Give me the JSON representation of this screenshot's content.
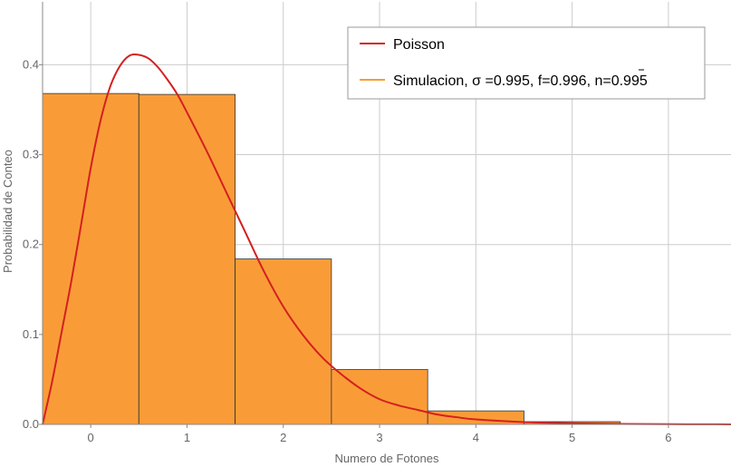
{
  "chart_data": {
    "type": "bar",
    "xlabel": "Numero de Fotones",
    "ylabel": "Probabilidad de Conteo",
    "xlim": [
      -0.5,
      6.65
    ],
    "ylim": [
      0,
      0.47
    ],
    "xticks": [
      0,
      1,
      2,
      3,
      4,
      5,
      6
    ],
    "xtick_labels": [
      "0",
      "1",
      "2",
      "3",
      "4",
      "5",
      "6"
    ],
    "yticks": [
      0,
      0.1,
      0.2,
      0.3,
      0.4
    ],
    "ytick_labels": [
      "0.0",
      "0.1",
      "0.2",
      "0.3",
      "0.4"
    ],
    "grid": true,
    "legend_position": "top-right",
    "series": [
      {
        "name": "Poisson",
        "kind": "line",
        "color": "#d42020",
        "x": [
          -0.5,
          -0.4,
          -0.3,
          -0.2,
          -0.1,
          0.0,
          0.1,
          0.2,
          0.3,
          0.4,
          0.5,
          0.6,
          0.7,
          0.8,
          0.9,
          1.0,
          1.2,
          1.4,
          1.6,
          1.8,
          2.0,
          2.2,
          2.4,
          2.6,
          2.8,
          3.0,
          3.2,
          3.4,
          3.6,
          3.8,
          4.0,
          4.5,
          5.0,
          5.5,
          6.0,
          6.5,
          6.65
        ],
        "y": [
          0.0,
          0.048,
          0.104,
          0.16,
          0.222,
          0.285,
          0.337,
          0.375,
          0.398,
          0.41,
          0.411,
          0.407,
          0.397,
          0.383,
          0.367,
          0.347,
          0.305,
          0.26,
          0.215,
          0.17,
          0.131,
          0.1,
          0.075,
          0.056,
          0.04,
          0.028,
          0.021,
          0.016,
          0.011,
          0.008,
          0.0055,
          0.0025,
          0.0012,
          0.0005,
          0.0002,
          0.0001,
          0.0
        ]
      },
      {
        "name": "Simulacion,  σ =0.995,  f=0.996,  n=0.995",
        "kind": "bar",
        "color": "#f99c38",
        "edge_color": "#333333",
        "categories": [
          0,
          1,
          2,
          3,
          4,
          5,
          6
        ],
        "values": [
          0.368,
          0.367,
          0.184,
          0.061,
          0.015,
          0.003,
          0.0005
        ]
      }
    ]
  },
  "legend": {
    "items": [
      {
        "label": "Poisson",
        "color": "#d42020"
      },
      {
        "label": "Simulacion,  σ =0.995,  f=0.996,  n=0.995",
        "color": "#f99c38"
      }
    ]
  }
}
